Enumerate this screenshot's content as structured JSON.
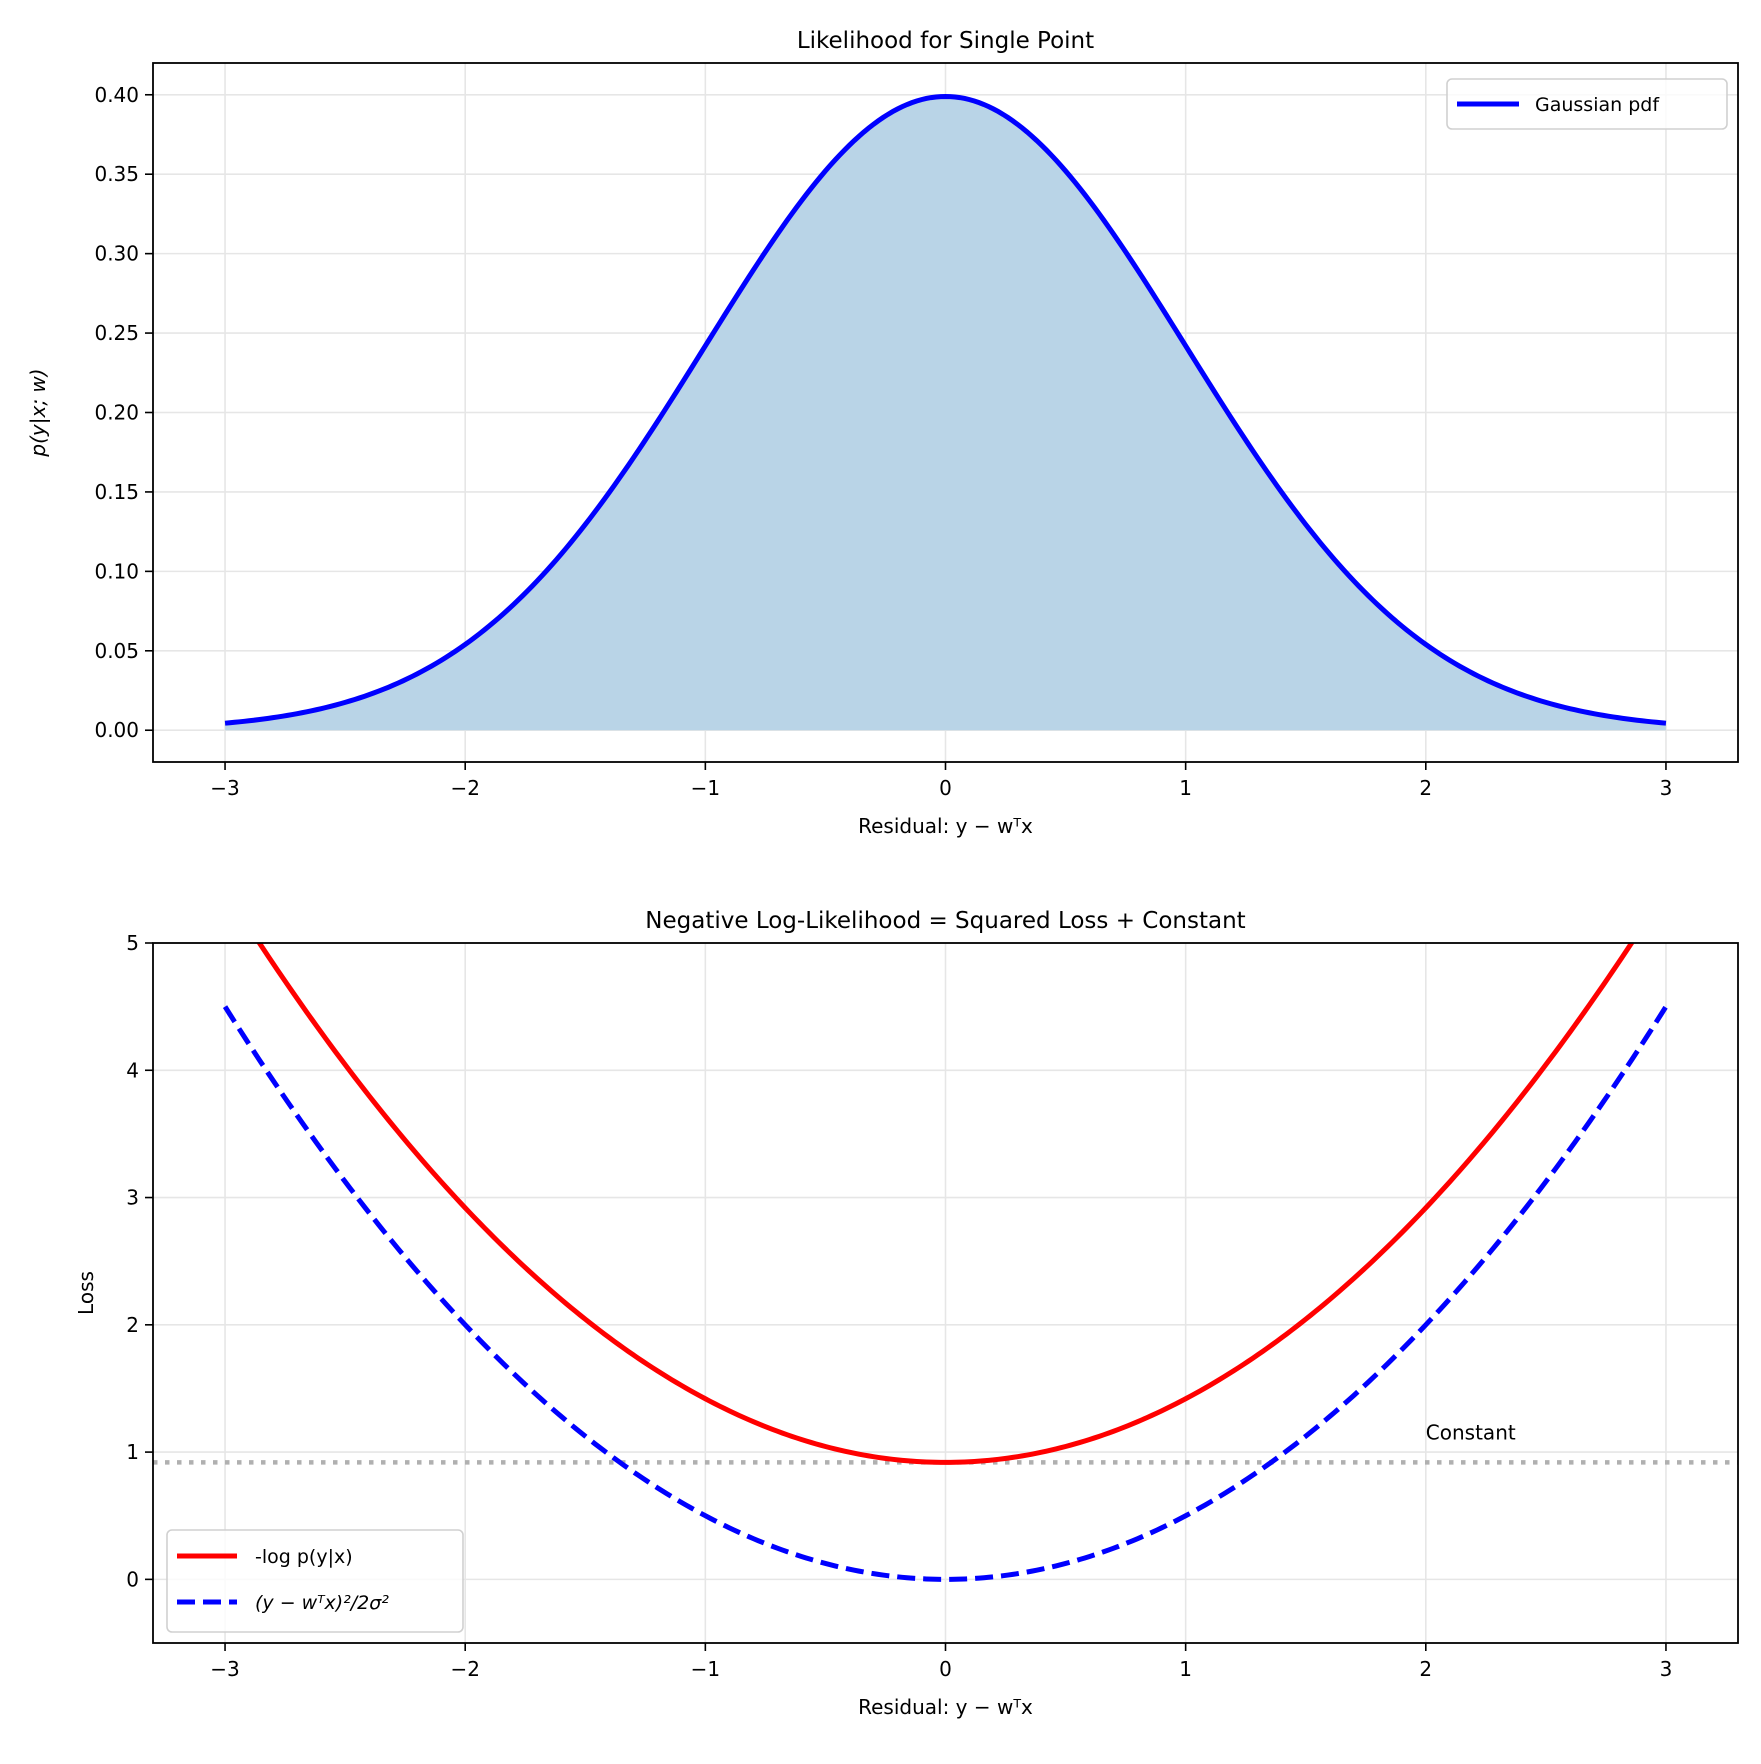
{
  "chart_data": [
    {
      "type": "area",
      "title": "Likelihood for Single Point",
      "xlabel": "Residual: y − wᵀx",
      "ylabel": "p(y|x; w)",
      "xlim": [
        -3.3,
        3.3
      ],
      "ylim": [
        -0.02,
        0.42
      ],
      "xticks": [
        -3,
        -2,
        -1,
        0,
        1,
        2,
        3
      ],
      "xtick_labels": [
        "−3",
        "−2",
        "−1",
        "0",
        "1",
        "2",
        "3"
      ],
      "yticks": [
        0,
        0.05,
        0.1,
        0.15,
        0.2,
        0.25,
        0.3,
        0.35,
        0.4
      ],
      "ytick_labels": [
        "0.00",
        "0.05",
        "0.10",
        "0.15",
        "0.20",
        "0.25",
        "0.30",
        "0.35",
        "0.40"
      ],
      "grid": true,
      "legend_position": "top-right",
      "series": [
        {
          "name": "Gaussian pdf",
          "function": "exp(-x^2/2)/sqrt(2*pi)",
          "x_range": [
            -3,
            3
          ],
          "color": "#0000ff",
          "fill_color": "#b9d4e7",
          "style": "solid"
        }
      ]
    },
    {
      "type": "line",
      "title": "Negative Log-Likelihood = Squared Loss + Constant",
      "xlabel": "Residual: y − wᵀx",
      "ylabel": "Loss",
      "xlim": [
        -3.3,
        3.3
      ],
      "ylim": [
        -0.5,
        5
      ],
      "xticks": [
        -3,
        -2,
        -1,
        0,
        1,
        2,
        3
      ],
      "xtick_labels": [
        "−3",
        "−2",
        "−1",
        "0",
        "1",
        "2",
        "3"
      ],
      "yticks": [
        0,
        1,
        2,
        3,
        4,
        5
      ],
      "ytick_labels": [
        "0",
        "1",
        "2",
        "3",
        "4",
        "5"
      ],
      "grid": true,
      "legend_position": "bottom-left",
      "series": [
        {
          "name": "-log p(y|x)",
          "function": "x^2/2 + 0.919",
          "x_range": [
            -3,
            3
          ],
          "color": "#ff0000",
          "style": "solid"
        },
        {
          "name": "(y − wᵀx)²/2σ²",
          "function": "x^2/2",
          "x_range": [
            -3,
            3
          ],
          "color": "#0000ff",
          "style": "dashed"
        }
      ],
      "hline": {
        "y": 0.919,
        "color": "#b0b0b0",
        "style": "dotted"
      },
      "annotation": {
        "text": "Constant",
        "x": 2,
        "y": 1.1,
        "color": "#808080"
      }
    }
  ]
}
